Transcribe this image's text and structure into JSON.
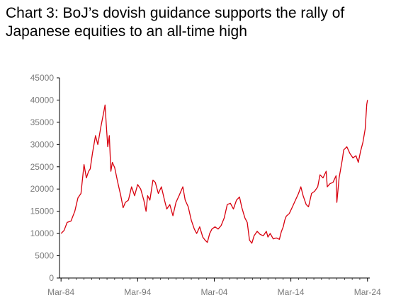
{
  "chart_data": {
    "type": "line",
    "title_line1": "Chart 3: BoJ’s dovish guidance supports the rally of",
    "title_line2": "Japanese equities to an all-time high",
    "xlabel": "",
    "ylabel": "",
    "ylim": [
      0,
      45000
    ],
    "y_ticks": [
      "0",
      "5000",
      "10000",
      "15000",
      "20000",
      "25000",
      "30000",
      "35000",
      "40000",
      "45000"
    ],
    "x_ticks": [
      "Mar-84",
      "Mar-94",
      "Mar-04",
      "Mar-14",
      "Mar-24"
    ],
    "grid": false,
    "series_color": "#d8000e",
    "series": [
      {
        "x": [
          1984.2,
          1984.6,
          1985.0,
          1985.5,
          1986.0,
          1986.4,
          1986.8,
          1987.2,
          1987.5,
          1987.8,
          1988.0,
          1988.3,
          1988.7,
          1989.0,
          1989.4,
          1989.8,
          1989.95,
          1990.1,
          1990.3,
          1990.5,
          1990.7,
          1990.9,
          1991.2,
          1991.6,
          1992.0,
          1992.3,
          1992.6,
          1993.0,
          1993.4,
          1993.8,
          1994.2,
          1994.6,
          1995.0,
          1995.3,
          1995.5,
          1995.8,
          1996.2,
          1996.5,
          1996.9,
          1997.3,
          1997.7,
          1998.0,
          1998.4,
          1998.8,
          1999.2,
          1999.6,
          2000.1,
          2000.4,
          2000.8,
          2001.2,
          2001.6,
          2001.9,
          2002.3,
          2002.7,
          2003.0,
          2003.3,
          2003.6,
          2003.9,
          2004.3,
          2004.7,
          2005.1,
          2005.5,
          2005.9,
          2006.3,
          2006.7,
          2007.1,
          2007.5,
          2007.8,
          2008.2,
          2008.5,
          2008.8,
          2009.1,
          2009.4,
          2009.8,
          2010.2,
          2010.6,
          2011.0,
          2011.2,
          2011.5,
          2011.9,
          2012.3,
          2012.7,
          2012.95,
          2013.2,
          2013.4,
          2013.6,
          2014.0,
          2014.4,
          2014.8,
          2015.2,
          2015.5,
          2015.8,
          2016.2,
          2016.5,
          2016.9,
          2017.3,
          2017.7,
          2018.0,
          2018.4,
          2018.8,
          2018.95,
          2019.3,
          2019.7,
          2020.1,
          2020.2,
          2020.5,
          2020.9,
          2021.1,
          2021.5,
          2021.9,
          2022.3,
          2022.7,
          2023.0,
          2023.3,
          2023.6,
          2023.9,
          2024.1,
          2024.2
        ],
        "values": [
          10000,
          10700,
          12500,
          12800,
          15000,
          18000,
          19000,
          25500,
          22500,
          24000,
          24500,
          28000,
          32000,
          30000,
          34000,
          37500,
          38900,
          34500,
          29500,
          32000,
          24000,
          26000,
          24800,
          21500,
          18500,
          15800,
          17000,
          17500,
          20500,
          18500,
          21000,
          20000,
          17500,
          15000,
          18500,
          17500,
          22000,
          21500,
          19000,
          20500,
          17500,
          15500,
          16500,
          14000,
          17000,
          18500,
          20500,
          17500,
          16000,
          13000,
          11000,
          10000,
          11500,
          9200,
          8500,
          8000,
          10000,
          11000,
          11500,
          11000,
          11800,
          13500,
          16500,
          16800,
          15500,
          17500,
          18200,
          15800,
          13500,
          12500,
          8500,
          7800,
          9500,
          10500,
          9800,
          9500,
          10500,
          9200,
          10000,
          8800,
          9000,
          8700,
          10400,
          11500,
          13000,
          13900,
          14500,
          16000,
          17500,
          19000,
          20500,
          18500,
          16500,
          16000,
          19000,
          19500,
          20500,
          23200,
          22500,
          24000,
          20500,
          21200,
          21500,
          23000,
          17000,
          22500,
          26500,
          28800,
          29500,
          28000,
          27000,
          27500,
          26000,
          28500,
          30500,
          33500,
          39000,
          40000
        ]
      }
    ]
  }
}
